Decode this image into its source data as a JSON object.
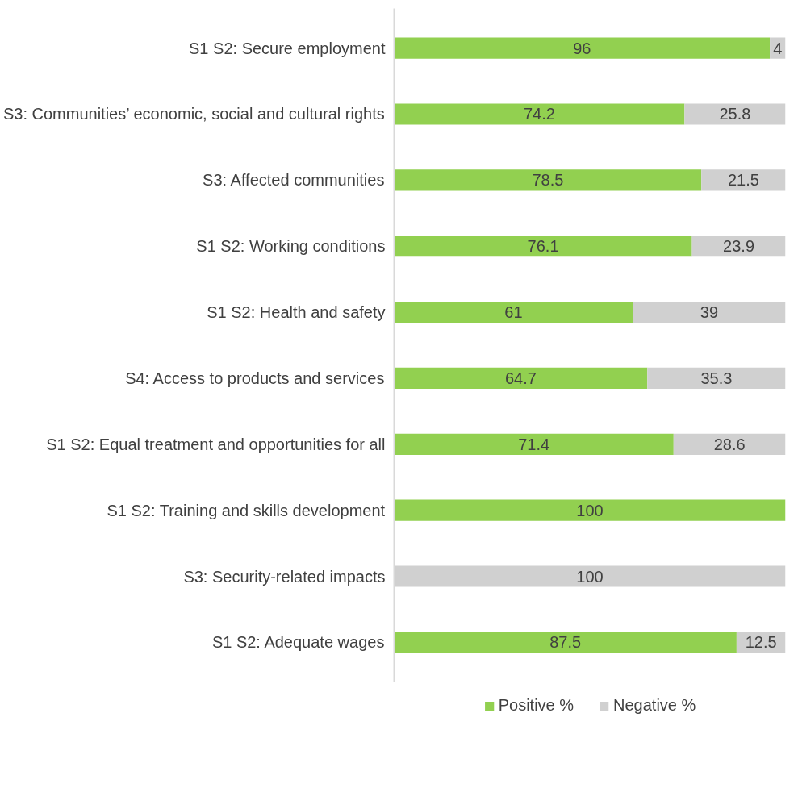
{
  "chart_data": {
    "type": "bar",
    "orientation": "horizontal",
    "stacked": true,
    "legend": "bottom",
    "grid": false,
    "categories": [
      "S1 S2: Secure employment",
      "S3: Communities’ economic, social and cultural rights",
      "S3: Affected communities",
      "S1 S2: Working conditions",
      "S1 S2: Health and safety",
      "S4: Access to products and services",
      "S1 S2: Equal treatment and opportunities for all",
      "S1 S2: Training and skills development",
      "S3: Security-related impacts",
      "S1 S2: Adequate wages"
    ],
    "series": [
      {
        "name": "Positive %",
        "color": "#92d050",
        "values": [
          96,
          74.2,
          78.5,
          76.1,
          61,
          64.7,
          71.4,
          100,
          0,
          87.5
        ],
        "value_labels": [
          "96",
          "74.2",
          "78.5",
          "76.1",
          "61",
          "64.7",
          "71.4",
          "100",
          null,
          "87.5"
        ]
      },
      {
        "name": "Negative %",
        "color": "#d0d0d0",
        "values": [
          4,
          25.8,
          21.5,
          23.9,
          39,
          35.3,
          28.6,
          0,
          100,
          12.5
        ],
        "value_labels": [
          "4",
          "25.8",
          "21.5",
          "23.9",
          "39",
          "35.3",
          "28.6",
          null,
          "100",
          "12.5"
        ]
      }
    ]
  }
}
